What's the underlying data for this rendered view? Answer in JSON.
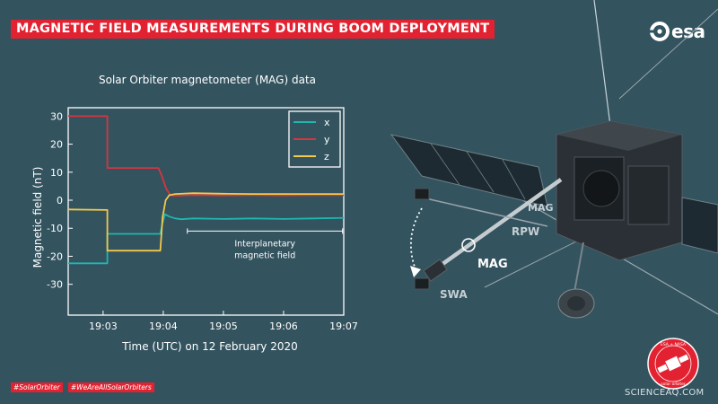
{
  "banner": {
    "title": "MAGNETIC FIELD MEASUREMENTS DURING BOOM DEPLOYMENT"
  },
  "logo": {
    "text": "esa"
  },
  "footer": {
    "hashtags": [
      "#SolarOrbiter",
      "#WeAreAllSolarOrbiters"
    ],
    "watermark": "SCIENCEAQ.COM"
  },
  "badge": {
    "top_text": "ESA + NASA",
    "bottom_text": "· solar orbiter ·"
  },
  "spacecraft_labels": {
    "mag_small": "MAG",
    "rpw": "RPW",
    "mag_big": "MAG",
    "swa": "SWA"
  },
  "colors": {
    "x": "#1fb7b0",
    "y": "#d8343f",
    "z": "#f2c94c",
    "banner": "#e32231",
    "background": "#33535f"
  },
  "chart_data": {
    "type": "line",
    "title": "Solar Orbiter magnetometer (MAG) data",
    "xlabel": "Time (UTC) on 12 February 2020",
    "ylabel": "Magnetic field (nT)",
    "x_unit": "minutes after 19:00 UTC",
    "xlim": [
      2.42,
      7.0
    ],
    "ylim": [
      -41,
      33
    ],
    "x_ticks": [
      3,
      4,
      5,
      6,
      7
    ],
    "x_tick_labels": [
      "19:03",
      "19:04",
      "19:05",
      "19:06",
      "19:07"
    ],
    "y_ticks": [
      30,
      20,
      10,
      0,
      -10,
      -20,
      -30
    ],
    "y_tick_labels": [
      "30",
      "20",
      "10",
      "0",
      "-10",
      "-20",
      "-30"
    ],
    "grid": false,
    "legend_position": "top-right",
    "annotation": {
      "text_line1": "Interplanetary",
      "text_line2": "magnetic field",
      "x_start": 4.4,
      "x_end": 6.98,
      "y": -11
    },
    "series": [
      {
        "name": "x",
        "color": "#1fb7b0",
        "x": [
          2.42,
          3.07,
          3.07,
          3.95,
          3.99,
          4.03,
          4.07,
          4.12,
          4.2,
          4.3,
          4.5,
          5.0,
          5.5,
          6.0,
          6.5,
          7.0
        ],
        "y": [
          -22.5,
          -22.5,
          -12,
          -12,
          -8,
          -5,
          -5.5,
          -6,
          -6.5,
          -6.8,
          -6.5,
          -6.7,
          -6.5,
          -6.7,
          -6.5,
          -6.3
        ]
      },
      {
        "name": "y",
        "color": "#d8343f",
        "x": [
          2.42,
          3.07,
          3.07,
          3.92,
          3.97,
          4.05,
          4.12,
          4.2,
          4.5,
          5.0,
          5.5,
          6.0,
          6.5,
          7.0
        ],
        "y": [
          30,
          30,
          11.5,
          11.5,
          9,
          4,
          1.8,
          1.6,
          1.8,
          1.7,
          1.8,
          1.7,
          1.8,
          1.8
        ]
      },
      {
        "name": "z",
        "color": "#f2c94c",
        "x": [
          2.42,
          3.07,
          3.07,
          3.95,
          3.99,
          4.04,
          4.1,
          4.2,
          4.5,
          5.0,
          5.5,
          6.0,
          6.5,
          7.0
        ],
        "y": [
          -3.3,
          -3.5,
          -18,
          -18,
          -6,
          0,
          1.8,
          2.2,
          2.5,
          2.3,
          2.2,
          2.2,
          2.2,
          2.2
        ]
      }
    ]
  }
}
